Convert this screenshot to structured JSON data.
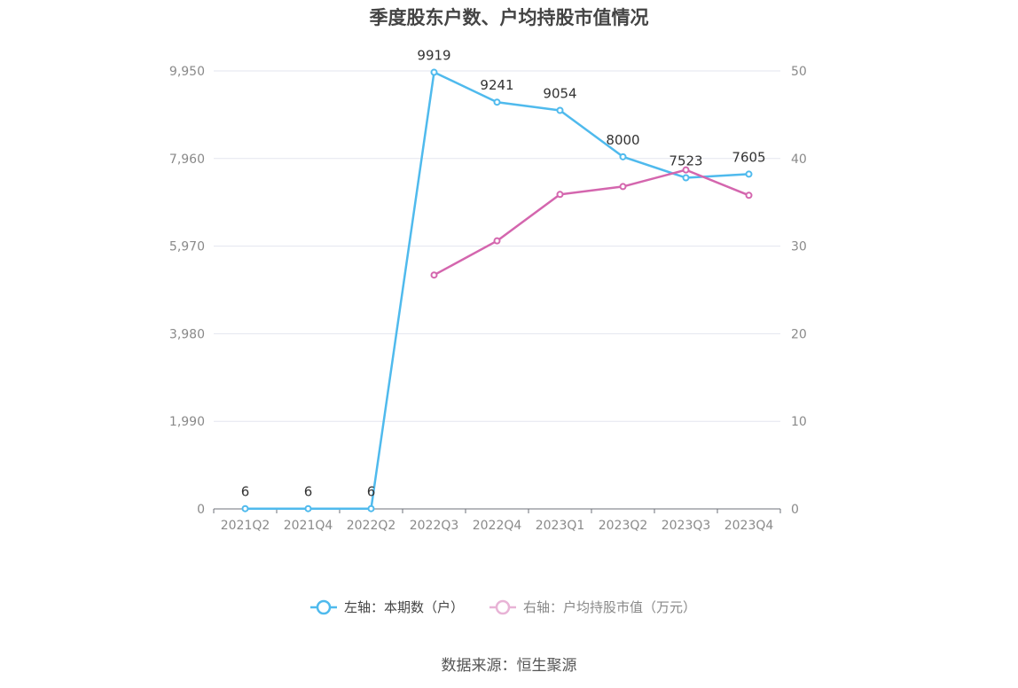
{
  "chart_data": {
    "type": "line",
    "title": "季度股东户数、户均持股市值情况",
    "categories": [
      "2021Q2",
      "2021Q4",
      "2022Q2",
      "2022Q3",
      "2022Q4",
      "2023Q1",
      "2023Q2",
      "2023Q3",
      "2023Q4"
    ],
    "series": [
      {
        "name": "左轴：本期数（户）",
        "axis": "left",
        "color": "#4fbaed",
        "values": [
          6,
          6,
          6,
          9919,
          9241,
          9054,
          8000,
          7523,
          7605
        ],
        "labels": [
          "6",
          "6",
          "6",
          "9919",
          "9241",
          "9054",
          "8000",
          "7523",
          "7605"
        ]
      },
      {
        "name": "右轴：户均持股市值（万元）",
        "axis": "right",
        "color": "#d466ae",
        "values": [
          null,
          null,
          null,
          26.7,
          30.6,
          35.9,
          36.8,
          38.7,
          35.8
        ]
      }
    ],
    "y_left": {
      "min": 0,
      "max": 9950,
      "ticks": [
        0,
        1990,
        3980,
        5970,
        7960,
        9950
      ],
      "tick_labels": [
        "0",
        "1,990",
        "3,980",
        "5,970",
        "7,960",
        "9,950"
      ]
    },
    "y_right": {
      "min": 0,
      "max": 50,
      "ticks": [
        0,
        10,
        20,
        30,
        40,
        50
      ],
      "tick_labels": [
        "0",
        "10",
        "20",
        "30",
        "40",
        "50"
      ]
    },
    "grid": true,
    "legend_position": "bottom"
  },
  "source_text": "数据来源：恒生聚源"
}
